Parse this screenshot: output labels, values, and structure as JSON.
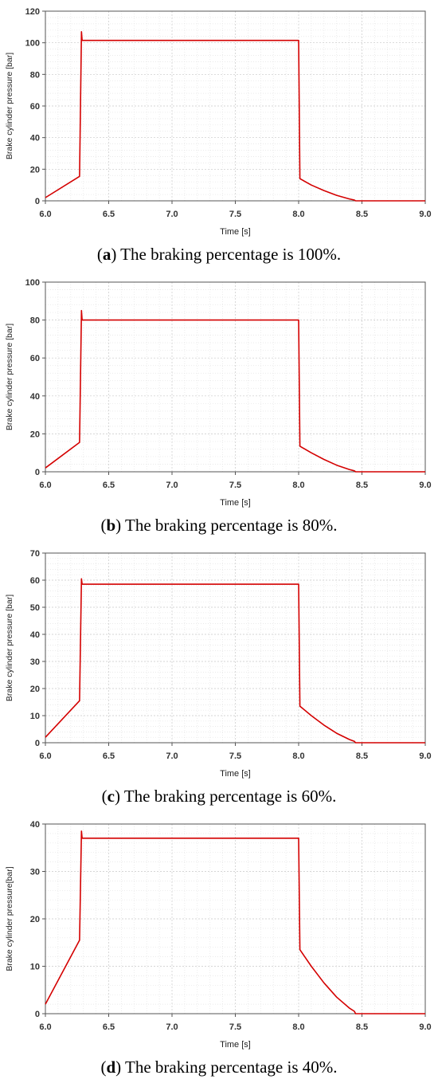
{
  "chart_data": [
    {
      "type": "line",
      "ylabel": "Brake cylinder pressure [bar]",
      "xlabel": "Time [s]",
      "xlim": [
        6.0,
        9.0
      ],
      "ylim": [
        0,
        120
      ],
      "xticks": [
        "6.0",
        "6.5",
        "7.0",
        "7.5",
        "8.0",
        "8.5",
        "9.0"
      ],
      "yticks": [
        "0",
        "20",
        "40",
        "60",
        "80",
        "100",
        "120"
      ],
      "grid": true,
      "line_color": "#d40000",
      "series": [
        {
          "x": [
            6.0,
            6.27,
            6.285,
            6.29,
            6.31,
            8.0,
            8.01,
            8.1,
            8.2,
            8.3,
            8.4,
            8.44,
            8.45,
            9.0
          ],
          "y": [
            2,
            15.5,
            107,
            101.5,
            101.5,
            101.5,
            14,
            10,
            6.5,
            3.5,
            1.2,
            0.5,
            0,
            0
          ]
        }
      ],
      "caption": {
        "letter": "a",
        "text": " The braking percentage is 100%."
      }
    },
    {
      "type": "line",
      "ylabel": "Brake cylinder pressure [bar]",
      "xlabel": "Time [s]",
      "xlim": [
        6.0,
        9.0
      ],
      "ylim": [
        0,
        100
      ],
      "xticks": [
        "6.0",
        "6.5",
        "7.0",
        "7.5",
        "8.0",
        "8.5",
        "9.0"
      ],
      "yticks": [
        "0",
        "20",
        "40",
        "60",
        "80",
        "100"
      ],
      "grid": true,
      "line_color": "#d40000",
      "series": [
        {
          "x": [
            6.0,
            6.27,
            6.285,
            6.29,
            6.31,
            8.0,
            8.01,
            8.1,
            8.2,
            8.3,
            8.4,
            8.44,
            8.45,
            9.0
          ],
          "y": [
            2,
            15.5,
            85,
            80,
            80,
            80,
            13.5,
            10,
            6.5,
            3.5,
            1.2,
            0.5,
            0,
            0
          ]
        }
      ],
      "caption": {
        "letter": "b",
        "text": " The braking percentage is 80%."
      }
    },
    {
      "type": "line",
      "ylabel": "Brake cylinder pressure [bar]",
      "xlabel": "Time [s]",
      "xlim": [
        6.0,
        9.0
      ],
      "ylim": [
        0,
        70
      ],
      "xticks": [
        "6.0",
        "6.5",
        "7.0",
        "7.5",
        "8.0",
        "8.5",
        "9.0"
      ],
      "yticks": [
        "0",
        "10",
        "20",
        "30",
        "40",
        "50",
        "60",
        "70"
      ],
      "grid": true,
      "line_color": "#d40000",
      "series": [
        {
          "x": [
            6.0,
            6.27,
            6.285,
            6.29,
            6.31,
            8.0,
            8.01,
            8.1,
            8.2,
            8.3,
            8.4,
            8.44,
            8.45,
            9.0
          ],
          "y": [
            2,
            15.5,
            60.5,
            58.5,
            58.5,
            58.5,
            13.5,
            10,
            6.5,
            3.5,
            1.2,
            0.5,
            0,
            0
          ]
        }
      ],
      "caption": {
        "letter": "c",
        "text": " The braking percentage is 60%."
      }
    },
    {
      "type": "line",
      "ylabel": "Brake cylinder pressure[bar]",
      "xlabel": "Time [s]",
      "xlim": [
        6.0,
        9.0
      ],
      "ylim": [
        0,
        40
      ],
      "xticks": [
        "6.0",
        "6.5",
        "7.0",
        "7.5",
        "8.0",
        "8.5",
        "9.0"
      ],
      "yticks": [
        "0",
        "10",
        "20",
        "30",
        "40"
      ],
      "grid": true,
      "line_color": "#d40000",
      "series": [
        {
          "x": [
            6.0,
            6.27,
            6.285,
            6.29,
            6.31,
            8.0,
            8.01,
            8.1,
            8.2,
            8.3,
            8.4,
            8.44,
            8.45,
            9.0
          ],
          "y": [
            2,
            15.5,
            38.5,
            37,
            37,
            37,
            13.5,
            10,
            6.5,
            3.5,
            1.2,
            0.5,
            0,
            0
          ]
        }
      ],
      "caption": {
        "letter": "d",
        "text": " The braking percentage is 40%."
      }
    }
  ]
}
